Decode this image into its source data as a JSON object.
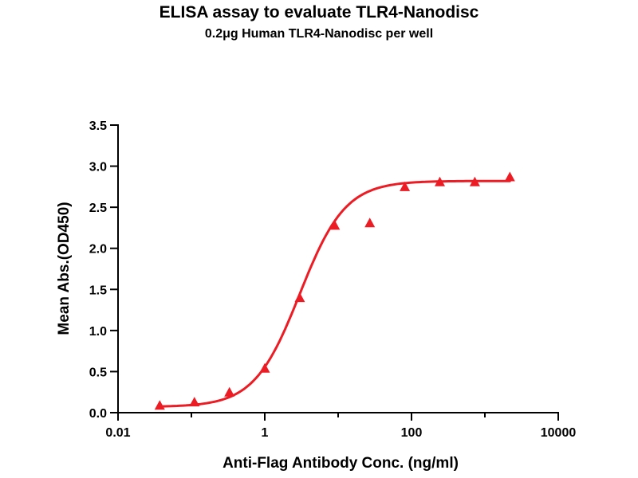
{
  "header": {
    "title": "ELISA assay to evaluate TLR4-Nanodisc",
    "subtitle": "0.2μg Human TLR4-Nanodisc per well"
  },
  "chart_data": {
    "type": "scatter",
    "title": "ELISA assay to evaluate TLR4-Nanodisc",
    "subtitle": "0.2μg Human TLR4-Nanodisc per well",
    "xlabel": "Anti-Flag Antibody Conc. (ng/ml)",
    "ylabel": "Mean Abs.(OD450)",
    "x_scale": "log10",
    "xlim": [
      0.01,
      10000
    ],
    "ylim": [
      0,
      3.5
    ],
    "x_major_ticks": [
      0.01,
      1,
      100,
      10000
    ],
    "x_major_tick_labels": [
      "0.01",
      "1",
      "100",
      "10000"
    ],
    "x_minor_ticks": [
      0.1,
      10,
      1000
    ],
    "y_ticks": [
      0,
      0.5,
      1,
      1.5,
      2,
      2.5,
      3,
      3.5
    ],
    "y_tick_labels": [
      "0.0",
      "0.5",
      "1.0",
      "1.5",
      "2.0",
      "2.5",
      "3.0",
      "3.5"
    ],
    "grid": false,
    "legend": "none",
    "series": [
      {
        "name": "Human TLR4-Nanodisc",
        "marker": "triangle",
        "color": "#EC1C24",
        "x": [
          0.037,
          0.11,
          0.33,
          1,
          3,
          9,
          27,
          81,
          243,
          729,
          2187
        ],
        "y": [
          0.08,
          0.12,
          0.24,
          0.53,
          1.39,
          2.27,
          2.3,
          2.74,
          2.8,
          2.8,
          2.86
        ]
      }
    ],
    "fit": {
      "model": "4PL",
      "bottom": 0.07,
      "top": 2.82,
      "ec50": 3.0,
      "hill": 1.4
    }
  }
}
